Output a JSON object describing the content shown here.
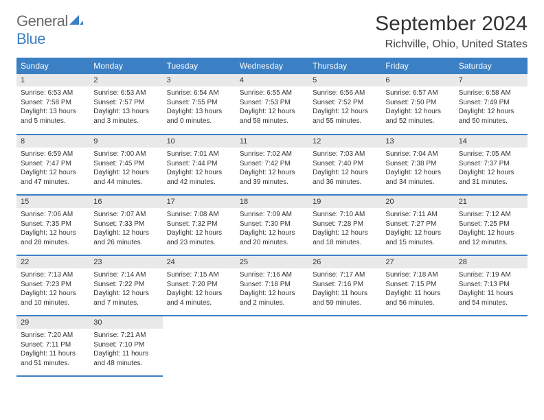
{
  "brand": {
    "part1": "General",
    "part2": "Blue"
  },
  "title": "September 2024",
  "location": "Richville, Ohio, United States",
  "colors": {
    "header_bg": "#3b7fc4",
    "header_text": "#ffffff",
    "daynum_bg": "#e9e9e9",
    "border": "#3b7fc4",
    "page_bg": "#ffffff",
    "text": "#333333",
    "logo_gray": "#6a6a6a",
    "logo_blue": "#3b7fc4"
  },
  "typography": {
    "title_fontsize": 30,
    "location_fontsize": 16,
    "dayheader_fontsize": 12,
    "daynum_fontsize": 11,
    "body_fontsize": 10
  },
  "day_headers": [
    "Sunday",
    "Monday",
    "Tuesday",
    "Wednesday",
    "Thursday",
    "Friday",
    "Saturday"
  ],
  "weeks": [
    [
      {
        "n": "1",
        "sunrise": "Sunrise: 6:53 AM",
        "sunset": "Sunset: 7:58 PM",
        "daylight": "Daylight: 13 hours and 5 minutes."
      },
      {
        "n": "2",
        "sunrise": "Sunrise: 6:53 AM",
        "sunset": "Sunset: 7:57 PM",
        "daylight": "Daylight: 13 hours and 3 minutes."
      },
      {
        "n": "3",
        "sunrise": "Sunrise: 6:54 AM",
        "sunset": "Sunset: 7:55 PM",
        "daylight": "Daylight: 13 hours and 0 minutes."
      },
      {
        "n": "4",
        "sunrise": "Sunrise: 6:55 AM",
        "sunset": "Sunset: 7:53 PM",
        "daylight": "Daylight: 12 hours and 58 minutes."
      },
      {
        "n": "5",
        "sunrise": "Sunrise: 6:56 AM",
        "sunset": "Sunset: 7:52 PM",
        "daylight": "Daylight: 12 hours and 55 minutes."
      },
      {
        "n": "6",
        "sunrise": "Sunrise: 6:57 AM",
        "sunset": "Sunset: 7:50 PM",
        "daylight": "Daylight: 12 hours and 52 minutes."
      },
      {
        "n": "7",
        "sunrise": "Sunrise: 6:58 AM",
        "sunset": "Sunset: 7:49 PM",
        "daylight": "Daylight: 12 hours and 50 minutes."
      }
    ],
    [
      {
        "n": "8",
        "sunrise": "Sunrise: 6:59 AM",
        "sunset": "Sunset: 7:47 PM",
        "daylight": "Daylight: 12 hours and 47 minutes."
      },
      {
        "n": "9",
        "sunrise": "Sunrise: 7:00 AM",
        "sunset": "Sunset: 7:45 PM",
        "daylight": "Daylight: 12 hours and 44 minutes."
      },
      {
        "n": "10",
        "sunrise": "Sunrise: 7:01 AM",
        "sunset": "Sunset: 7:44 PM",
        "daylight": "Daylight: 12 hours and 42 minutes."
      },
      {
        "n": "11",
        "sunrise": "Sunrise: 7:02 AM",
        "sunset": "Sunset: 7:42 PM",
        "daylight": "Daylight: 12 hours and 39 minutes."
      },
      {
        "n": "12",
        "sunrise": "Sunrise: 7:03 AM",
        "sunset": "Sunset: 7:40 PM",
        "daylight": "Daylight: 12 hours and 36 minutes."
      },
      {
        "n": "13",
        "sunrise": "Sunrise: 7:04 AM",
        "sunset": "Sunset: 7:38 PM",
        "daylight": "Daylight: 12 hours and 34 minutes."
      },
      {
        "n": "14",
        "sunrise": "Sunrise: 7:05 AM",
        "sunset": "Sunset: 7:37 PM",
        "daylight": "Daylight: 12 hours and 31 minutes."
      }
    ],
    [
      {
        "n": "15",
        "sunrise": "Sunrise: 7:06 AM",
        "sunset": "Sunset: 7:35 PM",
        "daylight": "Daylight: 12 hours and 28 minutes."
      },
      {
        "n": "16",
        "sunrise": "Sunrise: 7:07 AM",
        "sunset": "Sunset: 7:33 PM",
        "daylight": "Daylight: 12 hours and 26 minutes."
      },
      {
        "n": "17",
        "sunrise": "Sunrise: 7:08 AM",
        "sunset": "Sunset: 7:32 PM",
        "daylight": "Daylight: 12 hours and 23 minutes."
      },
      {
        "n": "18",
        "sunrise": "Sunrise: 7:09 AM",
        "sunset": "Sunset: 7:30 PM",
        "daylight": "Daylight: 12 hours and 20 minutes."
      },
      {
        "n": "19",
        "sunrise": "Sunrise: 7:10 AM",
        "sunset": "Sunset: 7:28 PM",
        "daylight": "Daylight: 12 hours and 18 minutes."
      },
      {
        "n": "20",
        "sunrise": "Sunrise: 7:11 AM",
        "sunset": "Sunset: 7:27 PM",
        "daylight": "Daylight: 12 hours and 15 minutes."
      },
      {
        "n": "21",
        "sunrise": "Sunrise: 7:12 AM",
        "sunset": "Sunset: 7:25 PM",
        "daylight": "Daylight: 12 hours and 12 minutes."
      }
    ],
    [
      {
        "n": "22",
        "sunrise": "Sunrise: 7:13 AM",
        "sunset": "Sunset: 7:23 PM",
        "daylight": "Daylight: 12 hours and 10 minutes."
      },
      {
        "n": "23",
        "sunrise": "Sunrise: 7:14 AM",
        "sunset": "Sunset: 7:22 PM",
        "daylight": "Daylight: 12 hours and 7 minutes."
      },
      {
        "n": "24",
        "sunrise": "Sunrise: 7:15 AM",
        "sunset": "Sunset: 7:20 PM",
        "daylight": "Daylight: 12 hours and 4 minutes."
      },
      {
        "n": "25",
        "sunrise": "Sunrise: 7:16 AM",
        "sunset": "Sunset: 7:18 PM",
        "daylight": "Daylight: 12 hours and 2 minutes."
      },
      {
        "n": "26",
        "sunrise": "Sunrise: 7:17 AM",
        "sunset": "Sunset: 7:16 PM",
        "daylight": "Daylight: 11 hours and 59 minutes."
      },
      {
        "n": "27",
        "sunrise": "Sunrise: 7:18 AM",
        "sunset": "Sunset: 7:15 PM",
        "daylight": "Daylight: 11 hours and 56 minutes."
      },
      {
        "n": "28",
        "sunrise": "Sunrise: 7:19 AM",
        "sunset": "Sunset: 7:13 PM",
        "daylight": "Daylight: 11 hours and 54 minutes."
      }
    ],
    [
      {
        "n": "29",
        "sunrise": "Sunrise: 7:20 AM",
        "sunset": "Sunset: 7:11 PM",
        "daylight": "Daylight: 11 hours and 51 minutes."
      },
      {
        "n": "30",
        "sunrise": "Sunrise: 7:21 AM",
        "sunset": "Sunset: 7:10 PM",
        "daylight": "Daylight: 11 hours and 48 minutes."
      },
      null,
      null,
      null,
      null,
      null
    ]
  ]
}
